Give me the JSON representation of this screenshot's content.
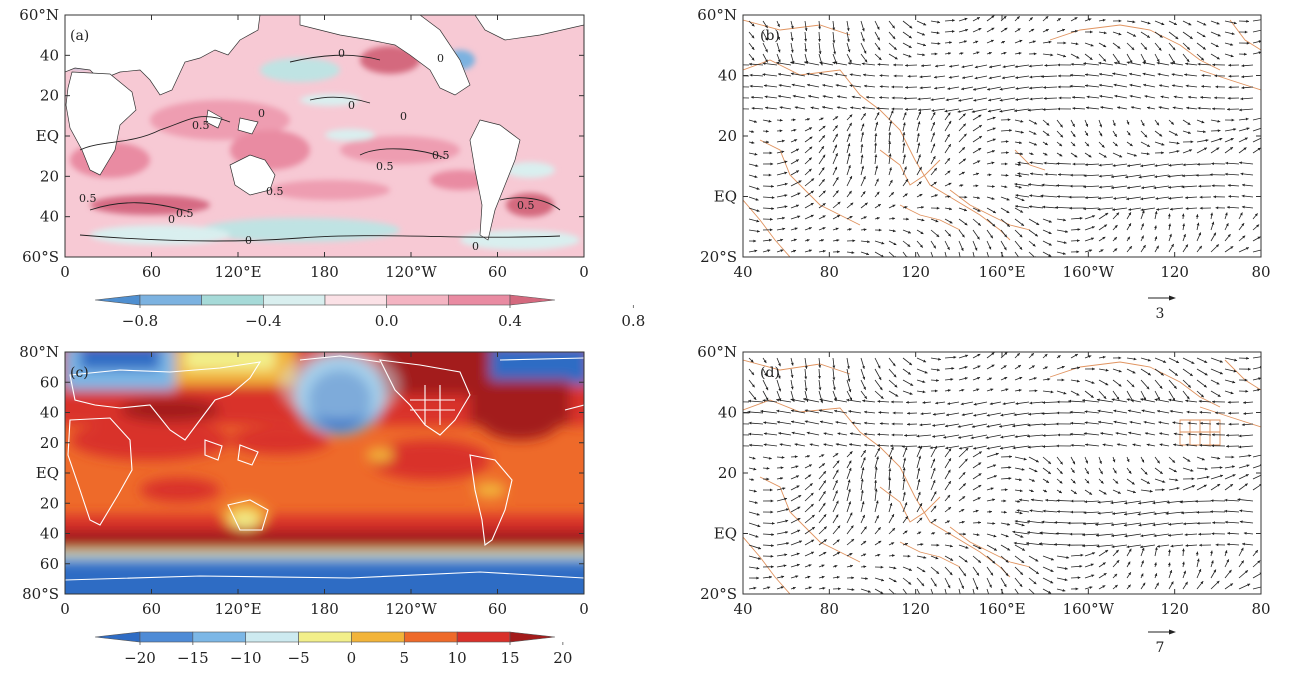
{
  "chart_data": [
    {
      "id": "a",
      "type": "heatmap",
      "panel_label": "(a)",
      "x_ticks": [
        "0",
        "60",
        "120°E",
        "180",
        "120°W",
        "60",
        "0"
      ],
      "y_ticks": [
        "60°N",
        "40",
        "20",
        "EQ",
        "20",
        "40",
        "60°S"
      ],
      "contour_labels": [
        "0",
        "0",
        "0",
        "0",
        "0",
        "0",
        "0",
        "0.5",
        "0.5",
        "0.5",
        "0.5",
        "0.5",
        "0.5",
        "0.5",
        "0"
      ],
      "colorbar": {
        "ticks": [
          "−0.8",
          "−0.4",
          "0.0",
          "0.4",
          "0.8"
        ],
        "colors": [
          "#4f8fd0",
          "#7cb2e0",
          "#a6dad8",
          "#d9efef",
          "#fbe1e6",
          "#f4b4c2",
          "#e98ba2",
          "#d4697e"
        ]
      }
    },
    {
      "id": "b",
      "type": "vector",
      "panel_label": "(b)",
      "x_ticks": [
        "40",
        "80",
        "120",
        "160°E",
        "160°W",
        "120",
        "80"
      ],
      "y_ticks": [
        "60°N",
        "40",
        "20",
        "EQ",
        "20°S"
      ],
      "reference_vector": "3"
    },
    {
      "id": "c",
      "type": "heatmap",
      "panel_label": "(c)",
      "x_ticks": [
        "0",
        "60",
        "120°E",
        "180",
        "120°W",
        "60",
        "0"
      ],
      "y_ticks": [
        "80°N",
        "60",
        "40",
        "20",
        "EQ",
        "20",
        "40",
        "60",
        "80°S"
      ],
      "colorbar": {
        "ticks": [
          "−20",
          "−15",
          "−10",
          "−5",
          "0",
          "5",
          "10",
          "15",
          "20"
        ],
        "colors": [
          "#2f6cc4",
          "#4e8bd6",
          "#7cb7e6",
          "#cdeaf0",
          "#f2ef8a",
          "#f2b43a",
          "#ee6a2a",
          "#d9302a",
          "#a31b1b"
        ]
      }
    },
    {
      "id": "d",
      "type": "vector",
      "panel_label": "(d)",
      "x_ticks": [
        "40",
        "80",
        "120",
        "160°E",
        "160°W",
        "120",
        "80"
      ],
      "y_ticks": [
        "60°N",
        "40",
        "20",
        "EQ",
        "20°S"
      ],
      "reference_vector": "7"
    }
  ]
}
